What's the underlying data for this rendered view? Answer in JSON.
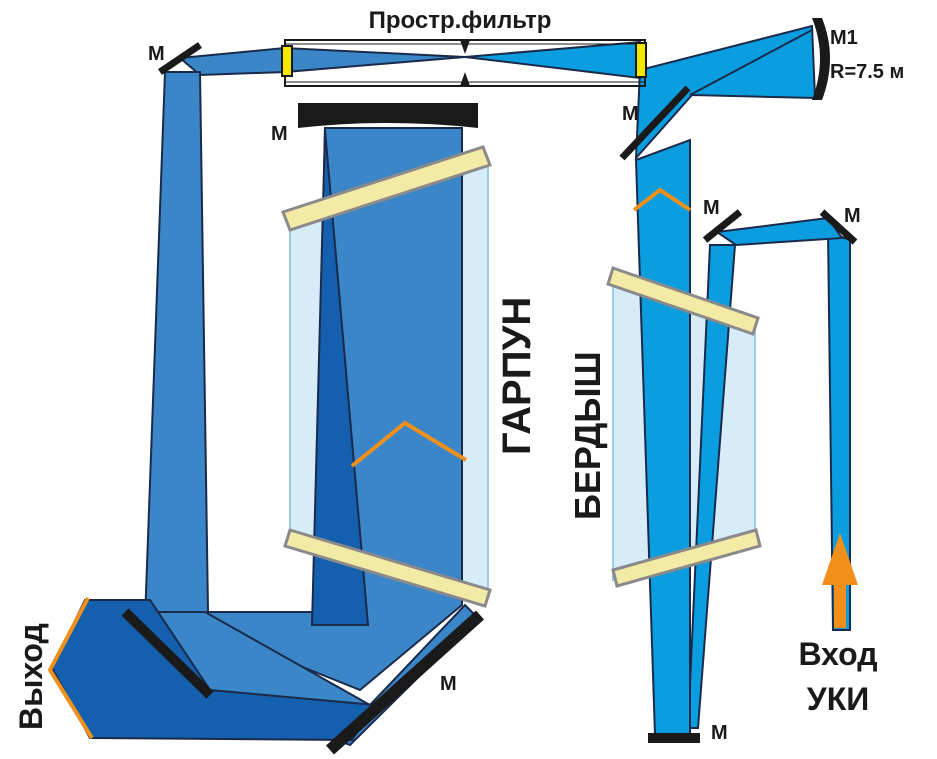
{
  "labels": {
    "spatial_filter": "Простр.фильтр",
    "mirror": "М",
    "m1": "М1",
    "m1_radius": "R=7.5 м",
    "garpun": "ГАРПУН",
    "berdysh": "БЕРДЫШ",
    "exit": "Выход",
    "input_line1": "Вход",
    "input_line2": "УКИ"
  },
  "colors": {
    "beam_light": "#0a9ee0",
    "beam_medium": "#3a86c8",
    "beam_dark": "#1460ae",
    "beam_outline": "#1a2a4a",
    "glass_fill": "#d6ecf9",
    "glass_edge": "#9ccbe8",
    "window_fill": "#f3eaa6",
    "window_edge": "#8a8a8a",
    "mirror": "#1a1a1a",
    "mirror_curved": "#1a1a1a",
    "orange_marker": "#f0901a",
    "yellow_lens": "#f5e800",
    "text": "#1a1a1a"
  },
  "icons": [
    "mirror-icon",
    "curved-mirror-icon",
    "arrow-up-icon",
    "chevron-icon",
    "lens-icon"
  ]
}
